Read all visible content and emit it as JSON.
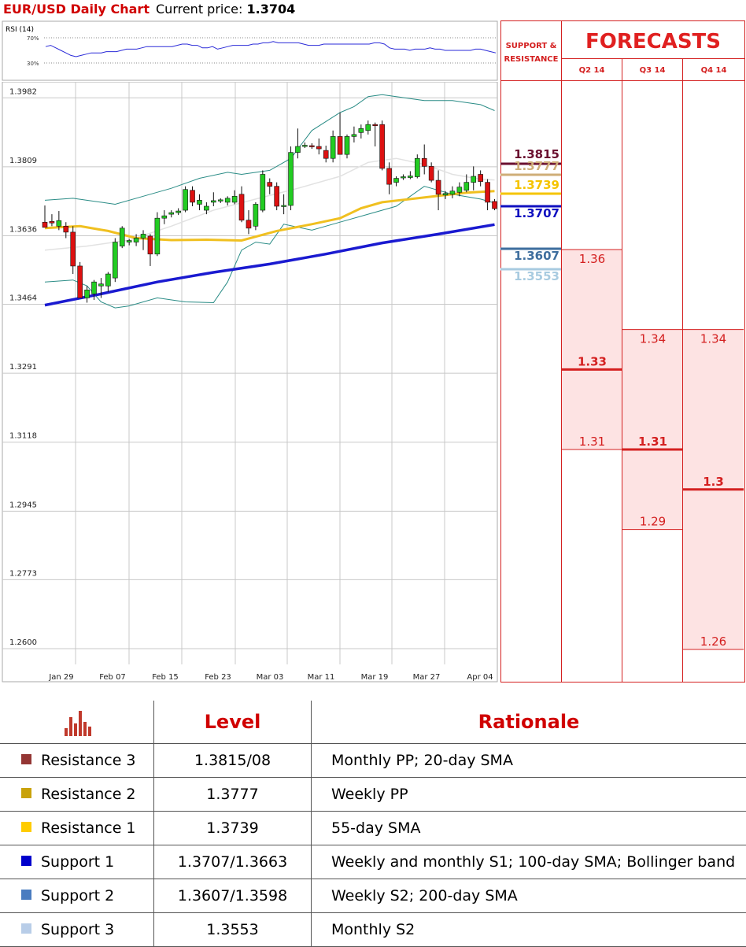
{
  "header": {
    "title": "EUR/USD Daily Chart",
    "price_label": "Current price:",
    "price_value": "1.3704"
  },
  "rsi": {
    "label": "RSI (14)",
    "levels": [
      "70%",
      "30%"
    ],
    "values": [
      56,
      58,
      54,
      50,
      46,
      42,
      40,
      42,
      44,
      46,
      46,
      46,
      48,
      48,
      48,
      50,
      52,
      52,
      52,
      54,
      56,
      56,
      56,
      56,
      56,
      56,
      58,
      60,
      60,
      58,
      58,
      54,
      54,
      56,
      52,
      54,
      56,
      58,
      58,
      58,
      58,
      60,
      60,
      62,
      62,
      64,
      62,
      62,
      62,
      62,
      62,
      60,
      58,
      58,
      58,
      60,
      60,
      60,
      60,
      60,
      60,
      60,
      60,
      60,
      60,
      62,
      62,
      60,
      54,
      52,
      52,
      52,
      50,
      52,
      52,
      52,
      54,
      52,
      52,
      50,
      50,
      50,
      50,
      50,
      50,
      52,
      52,
      50,
      48,
      46
    ],
    "line_color": "#2a2ad8"
  },
  "chart_data": {
    "type": "candlestick",
    "ylim": [
      1.26,
      1.4024
    ],
    "y_ticks": [
      "1.3982",
      "1.3809",
      "1.3636",
      "1.3464",
      "1.3291",
      "1.3118",
      "1.2945",
      "1.2773",
      "1.2600"
    ],
    "x_ticks": [
      "Jan 29",
      "Feb 07",
      "Feb 15",
      "Feb 23",
      "Mar 03",
      "Mar 11",
      "Mar 19",
      "Mar 27",
      "Apr 04"
    ],
    "candles": [
      {
        "o": 1.367,
        "h": 1.3712,
        "l": 1.366,
        "c": 1.3657
      },
      {
        "o": 1.3672,
        "h": 1.369,
        "l": 1.366,
        "c": 1.3668
      },
      {
        "o": 1.366,
        "h": 1.3698,
        "l": 1.365,
        "c": 1.3674
      },
      {
        "o": 1.366,
        "h": 1.367,
        "l": 1.363,
        "c": 1.3645
      },
      {
        "o": 1.3645,
        "h": 1.366,
        "l": 1.354,
        "c": 1.356
      },
      {
        "o": 1.356,
        "h": 1.357,
        "l": 1.348,
        "c": 1.348
      },
      {
        "o": 1.348,
        "h": 1.351,
        "l": 1.3468,
        "c": 1.35
      },
      {
        "o": 1.349,
        "h": 1.3525,
        "l": 1.3475,
        "c": 1.352
      },
      {
        "o": 1.351,
        "h": 1.353,
        "l": 1.348,
        "c": 1.3515
      },
      {
        "o": 1.351,
        "h": 1.3545,
        "l": 1.3495,
        "c": 1.354
      },
      {
        "o": 1.353,
        "h": 1.363,
        "l": 1.352,
        "c": 1.362
      },
      {
        "o": 1.361,
        "h": 1.366,
        "l": 1.3605,
        "c": 1.3655
      },
      {
        "o": 1.362,
        "h": 1.3628,
        "l": 1.3612,
        "c": 1.3624
      },
      {
        "o": 1.362,
        "h": 1.364,
        "l": 1.361,
        "c": 1.363
      },
      {
        "o": 1.363,
        "h": 1.365,
        "l": 1.36,
        "c": 1.364
      },
      {
        "o": 1.3635,
        "h": 1.364,
        "l": 1.356,
        "c": 1.359
      },
      {
        "o": 1.359,
        "h": 1.3695,
        "l": 1.3585,
        "c": 1.368
      },
      {
        "o": 1.368,
        "h": 1.37,
        "l": 1.3665,
        "c": 1.3686
      },
      {
        "o": 1.369,
        "h": 1.37,
        "l": 1.3682,
        "c": 1.3694
      },
      {
        "o": 1.3694,
        "h": 1.3705,
        "l": 1.3688,
        "c": 1.3698
      },
      {
        "o": 1.37,
        "h": 1.376,
        "l": 1.3695,
        "c": 1.3752
      },
      {
        "o": 1.375,
        "h": 1.376,
        "l": 1.371,
        "c": 1.372
      },
      {
        "o": 1.3715,
        "h": 1.374,
        "l": 1.37,
        "c": 1.3725
      },
      {
        "o": 1.37,
        "h": 1.372,
        "l": 1.369,
        "c": 1.371
      },
      {
        "o": 1.372,
        "h": 1.3745,
        "l": 1.371,
        "c": 1.3724
      },
      {
        "o": 1.3723,
        "h": 1.373,
        "l": 1.3718,
        "c": 1.3726
      },
      {
        "o": 1.372,
        "h": 1.3735,
        "l": 1.3712,
        "c": 1.373
      },
      {
        "o": 1.372,
        "h": 1.375,
        "l": 1.3715,
        "c": 1.3735
      },
      {
        "o": 1.374,
        "h": 1.376,
        "l": 1.367,
        "c": 1.3675
      },
      {
        "o": 1.3675,
        "h": 1.37,
        "l": 1.364,
        "c": 1.3655
      },
      {
        "o": 1.366,
        "h": 1.372,
        "l": 1.365,
        "c": 1.3715
      },
      {
        "o": 1.37,
        "h": 1.38,
        "l": 1.3695,
        "c": 1.379
      },
      {
        "o": 1.377,
        "h": 1.378,
        "l": 1.374,
        "c": 1.376
      },
      {
        "o": 1.376,
        "h": 1.377,
        "l": 1.37,
        "c": 1.371
      },
      {
        "o": 1.371,
        "h": 1.374,
        "l": 1.369,
        "c": 1.3712
      },
      {
        "o": 1.3712,
        "h": 1.386,
        "l": 1.37,
        "c": 1.3845
      },
      {
        "o": 1.3845,
        "h": 1.3905,
        "l": 1.383,
        "c": 1.386
      },
      {
        "o": 1.386,
        "h": 1.387,
        "l": 1.3856,
        "c": 1.3863
      },
      {
        "o": 1.3862,
        "h": 1.3868,
        "l": 1.3854,
        "c": 1.386
      },
      {
        "o": 1.386,
        "h": 1.388,
        "l": 1.384,
        "c": 1.3854
      },
      {
        "o": 1.385,
        "h": 1.3862,
        "l": 1.382,
        "c": 1.383
      },
      {
        "o": 1.383,
        "h": 1.39,
        "l": 1.382,
        "c": 1.3885
      },
      {
        "o": 1.3885,
        "h": 1.3945,
        "l": 1.384,
        "c": 1.384
      },
      {
        "o": 1.384,
        "h": 1.389,
        "l": 1.383,
        "c": 1.3885
      },
      {
        "o": 1.3885,
        "h": 1.391,
        "l": 1.387,
        "c": 1.389
      },
      {
        "o": 1.3895,
        "h": 1.3915,
        "l": 1.388,
        "c": 1.3905
      },
      {
        "o": 1.39,
        "h": 1.3925,
        "l": 1.389,
        "c": 1.3915
      },
      {
        "o": 1.3915,
        "h": 1.392,
        "l": 1.386,
        "c": 1.3912
      },
      {
        "o": 1.3915,
        "h": 1.3925,
        "l": 1.38,
        "c": 1.3805
      },
      {
        "o": 1.3805,
        "h": 1.382,
        "l": 1.374,
        "c": 1.3765
      },
      {
        "o": 1.377,
        "h": 1.3785,
        "l": 1.376,
        "c": 1.378
      },
      {
        "o": 1.3782,
        "h": 1.379,
        "l": 1.3776,
        "c": 1.3784
      },
      {
        "o": 1.3782,
        "h": 1.3798,
        "l": 1.3778,
        "c": 1.3786
      },
      {
        "o": 1.3784,
        "h": 1.384,
        "l": 1.378,
        "c": 1.383
      },
      {
        "o": 1.383,
        "h": 1.3865,
        "l": 1.379,
        "c": 1.381
      },
      {
        "o": 1.381,
        "h": 1.382,
        "l": 1.377,
        "c": 1.3775
      },
      {
        "o": 1.3775,
        "h": 1.38,
        "l": 1.37,
        "c": 1.374
      },
      {
        "o": 1.3738,
        "h": 1.3748,
        "l": 1.3728,
        "c": 1.3742
      },
      {
        "o": 1.374,
        "h": 1.376,
        "l": 1.373,
        "c": 1.3748
      },
      {
        "o": 1.3745,
        "h": 1.377,
        "l": 1.3735,
        "c": 1.3758
      },
      {
        "o": 1.375,
        "h": 1.379,
        "l": 1.3745,
        "c": 1.377
      },
      {
        "o": 1.377,
        "h": 1.381,
        "l": 1.375,
        "c": 1.3785
      },
      {
        "o": 1.379,
        "h": 1.38,
        "l": 1.376,
        "c": 1.3772
      },
      {
        "o": 1.377,
        "h": 1.3778,
        "l": 1.37,
        "c": 1.372
      },
      {
        "o": 1.3722,
        "h": 1.3728,
        "l": 1.37,
        "c": 1.3704
      }
    ],
    "sma_yellow": [
      [
        0,
        1.3655
      ],
      [
        5,
        1.366
      ],
      [
        9,
        1.3648
      ],
      [
        13,
        1.363
      ],
      [
        18,
        1.3625
      ],
      [
        23,
        1.3626
      ],
      [
        28,
        1.3624
      ],
      [
        33,
        1.3648
      ],
      [
        38,
        1.3665
      ],
      [
        42,
        1.368
      ],
      [
        45,
        1.3705
      ],
      [
        48,
        1.372
      ],
      [
        52,
        1.3728
      ],
      [
        56,
        1.3736
      ],
      [
        60,
        1.3744
      ],
      [
        64,
        1.3748
      ]
    ],
    "sma_blue": [
      [
        0,
        1.3462
      ],
      [
        8,
        1.349
      ],
      [
        16,
        1.352
      ],
      [
        24,
        1.3544
      ],
      [
        32,
        1.3565
      ],
      [
        40,
        1.359
      ],
      [
        48,
        1.3618
      ],
      [
        56,
        1.364
      ],
      [
        64,
        1.3664
      ]
    ],
    "sma_grey": [
      [
        0,
        1.36
      ],
      [
        6,
        1.361
      ],
      [
        12,
        1.3625
      ],
      [
        18,
        1.366
      ],
      [
        24,
        1.37
      ],
      [
        30,
        1.3728
      ],
      [
        36,
        1.3755
      ],
      [
        42,
        1.3785
      ],
      [
        46,
        1.382
      ],
      [
        50,
        1.383
      ],
      [
        54,
        1.3815
      ],
      [
        58,
        1.379
      ],
      [
        62,
        1.3778
      ],
      [
        64,
        1.3776
      ]
    ],
    "bb_upper": [
      [
        0,
        1.3725
      ],
      [
        4,
        1.373
      ],
      [
        8,
        1.372
      ],
      [
        10,
        1.3715
      ],
      [
        14,
        1.3735
      ],
      [
        18,
        1.3755
      ],
      [
        22,
        1.378
      ],
      [
        26,
        1.3795
      ],
      [
        28,
        1.379
      ],
      [
        32,
        1.38
      ],
      [
        35,
        1.383
      ],
      [
        38,
        1.39
      ],
      [
        42,
        1.3945
      ],
      [
        44,
        1.396
      ],
      [
        46,
        1.3985
      ],
      [
        48,
        1.399
      ],
      [
        50,
        1.3985
      ],
      [
        54,
        1.3975
      ],
      [
        58,
        1.3975
      ],
      [
        62,
        1.3965
      ],
      [
        64,
        1.395
      ]
    ],
    "bb_lower": [
      [
        0,
        1.352
      ],
      [
        4,
        1.3525
      ],
      [
        6,
        1.351
      ],
      [
        8,
        1.347
      ],
      [
        10,
        1.3455
      ],
      [
        12,
        1.346
      ],
      [
        16,
        1.348
      ],
      [
        20,
        1.347
      ],
      [
        24,
        1.3468
      ],
      [
        26,
        1.352
      ],
      [
        28,
        1.36
      ],
      [
        30,
        1.362
      ],
      [
        32,
        1.3615
      ],
      [
        34,
        1.3665
      ],
      [
        38,
        1.365
      ],
      [
        42,
        1.367
      ],
      [
        46,
        1.369
      ],
      [
        50,
        1.371
      ],
      [
        54,
        1.376
      ],
      [
        58,
        1.374
      ],
      [
        62,
        1.3728
      ],
      [
        64,
        1.3718
      ]
    ]
  },
  "sr_panel": {
    "header": "SUPPORT & RESISTANCE",
    "levels": [
      {
        "label": "1.3815",
        "value": 1.3815,
        "color": "#6b1030"
      },
      {
        "label": "1.3777",
        "value": 1.3777,
        "color": "#cfae78"
      },
      {
        "label": "1.3739",
        "value": 1.3739,
        "color": "#f5c400"
      },
      {
        "label": "1.3707",
        "value": 1.3707,
        "color": "#1010c0"
      },
      {
        "label": "1.3607",
        "value": 1.3607,
        "color": "#3e6e9e"
      },
      {
        "label": "1.3553",
        "value": 1.3553,
        "color": "#a8cbe0"
      }
    ]
  },
  "forecasts": {
    "title": "FORECASTS",
    "columns": [
      {
        "label": "Q2 14",
        "high": "1.36",
        "high_v": 1.36,
        "mid": "1.33",
        "mid_v": 1.33,
        "low": "1.31",
        "low_v": 1.31
      },
      {
        "label": "Q3 14",
        "high": "1.34",
        "high_v": 1.34,
        "mid": "1.31",
        "mid_v": 1.31,
        "low": "1.29",
        "low_v": 1.29
      },
      {
        "label": "Q4 14",
        "high": "1.34",
        "high_v": 1.34,
        "mid": "1.3",
        "mid_v": 1.3,
        "low": "1.26",
        "low_v": 1.26
      }
    ]
  },
  "levels_table": {
    "headers": [
      "Level",
      "Rationale"
    ],
    "icon": "bar-chart-icon",
    "rows": [
      {
        "name": "Resistance 3",
        "level": "1.3815/08",
        "rationale": "Monthly PP; 20-day SMA",
        "color": "#943634"
      },
      {
        "name": "Resistance 2",
        "level": "1.3777",
        "rationale": "Weekly PP",
        "color": "#c9a20a"
      },
      {
        "name": "Resistance 1",
        "level": "1.3739",
        "rationale": "55-day SMA",
        "color": "#ffcc00"
      },
      {
        "name": "Support 1",
        "level": "1.3707/1.3663",
        "rationale": "Weekly and monthly S1; 100-day SMA; Bollinger band",
        "color": "#0000cc"
      },
      {
        "name": "Support 2",
        "level": "1.3607/1.3598",
        "rationale": "Weekly S2; 200-day SMA",
        "color": "#4a7cc0"
      },
      {
        "name": "Support 3",
        "level": "1.3553",
        "rationale": "Monthly S2",
        "color": "#b8cde8"
      }
    ]
  }
}
